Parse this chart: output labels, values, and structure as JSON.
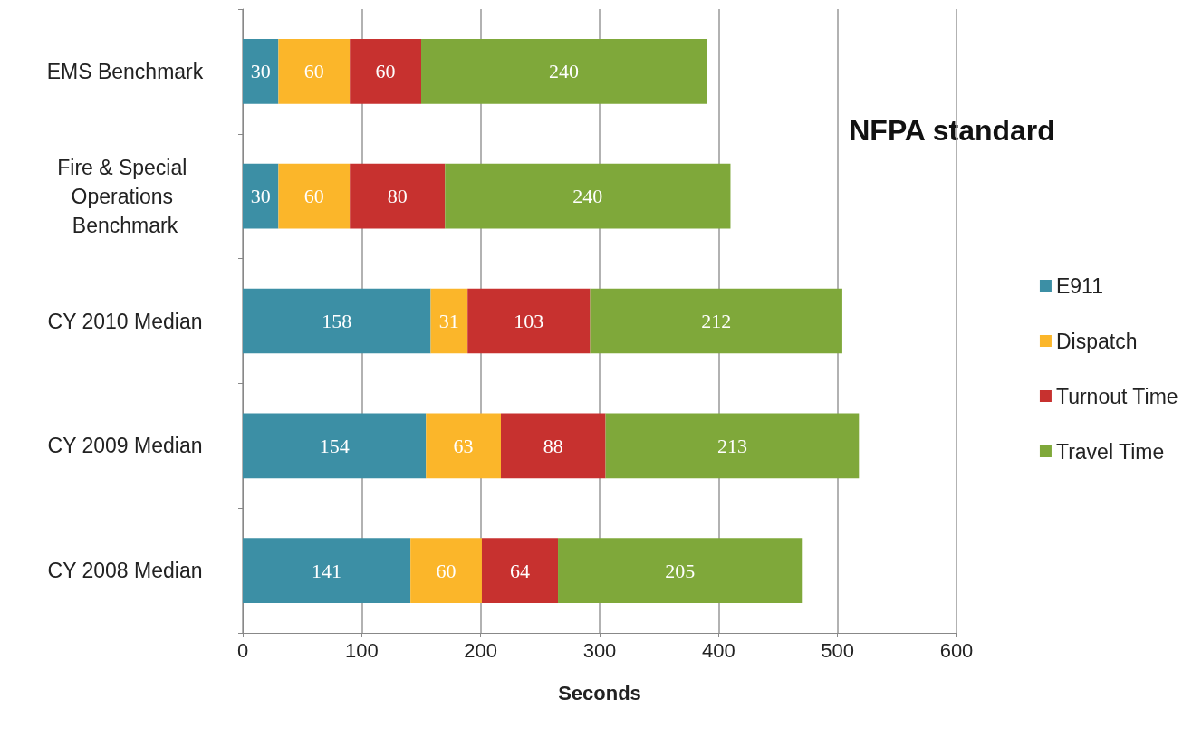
{
  "chart_data": {
    "type": "bar",
    "orientation": "horizontal",
    "stacked": true,
    "categories": [
      "EMS Benchmark",
      "Fire & Special Operations Benchmark",
      "CY 2010 Median",
      "CY 2009 Median",
      "CY 2008 Median"
    ],
    "series": [
      {
        "name": "E911",
        "color": "#3c8fa5",
        "values": [
          30,
          30,
          158,
          154,
          141
        ]
      },
      {
        "name": "Dispatch",
        "color": "#fbb62a",
        "values": [
          60,
          60,
          31,
          63,
          60
        ]
      },
      {
        "name": "Turnout Time",
        "color": "#c7312f",
        "values": [
          60,
          80,
          103,
          88,
          64
        ]
      },
      {
        "name": "Travel Time",
        "color": "#7fa83a",
        "values": [
          240,
          240,
          212,
          213,
          205
        ]
      }
    ],
    "xlim": [
      0,
      600
    ],
    "xticks": [
      0,
      100,
      200,
      300,
      400,
      500,
      600
    ],
    "xlabel": "Seconds",
    "annotations": [
      "NFPA standard"
    ],
    "grid": "x",
    "legend": "right",
    "data_labels": true
  }
}
